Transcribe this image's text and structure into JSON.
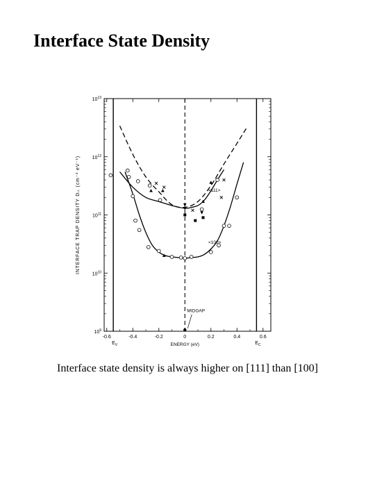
{
  "title": "Interface State Density",
  "caption": "Interface state density is always higher on [111] than [100]",
  "chart_data": {
    "type": "line",
    "xlabel": "ENERGY (eV)",
    "ylabel": "INTERFACE TRAP DENSITY Dᵢₜ (cm⁻² eV⁻¹)",
    "xlim": [
      -0.62,
      0.66
    ],
    "ylim_log10": [
      9,
      13
    ],
    "log_y": true,
    "x_ticks": [
      {
        "value": -0.6,
        "label": "-0.6"
      },
      {
        "value": -0.4,
        "label": "-0.4"
      },
      {
        "value": -0.2,
        "label": "-0.2"
      },
      {
        "value": 0,
        "label": "0"
      },
      {
        "value": 0.2,
        "label": "0.2"
      },
      {
        "value": 0.4,
        "label": "0.4"
      },
      {
        "value": 0.6,
        "label": "0.6"
      }
    ],
    "y_ticks": [
      {
        "log": 13,
        "mantissa": "10",
        "exp": "13"
      },
      {
        "log": 12,
        "mantissa": "10",
        "exp": "12"
      },
      {
        "log": 11,
        "mantissa": "10",
        "exp": "11"
      },
      {
        "log": 10,
        "mantissa": "10",
        "exp": "10"
      },
      {
        "log": 9,
        "mantissa": "10",
        "exp": "9"
      }
    ],
    "band_edges": [
      {
        "x": -0.55,
        "label": "E",
        "sub": "V"
      },
      {
        "x": 0.55,
        "label": "E",
        "sub": "C"
      }
    ],
    "midgap": {
      "x": 0,
      "label": "MIDGAP"
    },
    "series": [
      {
        "name": "<111>",
        "style": "dashed",
        "x": [
          -0.5,
          -0.4,
          -0.3,
          -0.2,
          -0.1,
          0,
          0.1,
          0.2,
          0.3,
          0.4,
          0.48
        ],
        "y": [
          3400000000000.0,
          1100000000000.0,
          450000000000.0,
          250000000000.0,
          150000000000.0,
          135000000000.0,
          170000000000.0,
          320000000000.0,
          750000000000.0,
          1700000000000.0,
          3300000000000.0
        ]
      },
      {
        "name": "<111>",
        "style": "solid",
        "x": [
          -0.5,
          -0.4,
          -0.3,
          -0.2,
          -0.1,
          0,
          0.05,
          0.1,
          0.15,
          0.2,
          0.25,
          0.3
        ],
        "y": [
          550000000000.0,
          300000000000.0,
          200000000000.0,
          170000000000.0,
          145000000000.0,
          130000000000.0,
          135000000000.0,
          145000000000.0,
          180000000000.0,
          260000000000.0,
          400000000000.0,
          600000000000.0
        ]
      },
      {
        "name": "<100>",
        "style": "solid",
        "x": [
          -0.46,
          -0.4,
          -0.35,
          -0.3,
          -0.25,
          -0.2,
          -0.15,
          -0.1,
          -0.05,
          0,
          0.05,
          0.1,
          0.15,
          0.2,
          0.25,
          0.3,
          0.35,
          0.4,
          0.45
        ],
        "y": [
          550000000000.0,
          230000000000.0,
          100000000000.0,
          50000000000.0,
          30000000000.0,
          23000000000.0,
          20000000000.0,
          19000000000.0,
          18500000000.0,
          18000000000.0,
          18500000000.0,
          19000000000.0,
          21000000000.0,
          26000000000.0,
          36000000000.0,
          65000000000.0,
          140000000000.0,
          340000000000.0,
          800000000000.0
        ]
      }
    ],
    "markers": {
      "circles": [
        [
          -0.57,
          480000000000.0
        ],
        [
          -0.44,
          580000000000.0
        ],
        [
          -0.43,
          450000000000.0
        ],
        [
          -0.36,
          380000000000.0
        ],
        [
          -0.27,
          320000000000.0
        ],
        [
          -0.4,
          210000000000.0
        ],
        [
          -0.38,
          80000000000.0
        ],
        [
          -0.35,
          55000000000.0
        ],
        [
          -0.28,
          28000000000.0
        ],
        [
          -0.2,
          24000000000.0
        ],
        [
          -0.1,
          19000000000.0
        ],
        [
          -0.03,
          18500000000.0
        ],
        [
          0.0,
          18000000000.0
        ],
        [
          0.05,
          19000000000.0
        ],
        [
          0.2,
          23000000000.0
        ],
        [
          0.26,
          30000000000.0
        ],
        [
          0.3,
          65000000000.0
        ],
        [
          0.34,
          65000000000.0
        ],
        [
          0.4,
          200000000000.0
        ],
        [
          0.25,
          400000000000.0
        ],
        [
          0.13,
          125000000000.0
        ],
        [
          -0.19,
          180000000000.0
        ]
      ],
      "crosses": [
        [
          -0.22,
          350000000000.0
        ],
        [
          -0.16,
          300000000000.0
        ],
        [
          0.3,
          400000000000.0
        ],
        [
          0.28,
          200000000000.0
        ],
        [
          0.06,
          120000000000.0
        ]
      ],
      "triangles": [
        [
          -0.26,
          260000000000.0
        ],
        [
          -0.17,
          260000000000.0
        ],
        [
          0.2,
          360000000000.0
        ],
        [
          -0.16,
          20000000000.0
        ],
        [
          0.14,
          170000000000.0
        ]
      ],
      "filled_squares": [
        [
          0,
          100000000000.0
        ],
        [
          0.08,
          80000000000.0
        ],
        [
          0.14,
          90000000000.0
        ]
      ],
      "filled_triangles": [
        [
          0,
          130000000000.0
        ],
        [
          0.13,
          110000000000.0
        ],
        [
          0.0,
          150000000000.0
        ]
      ],
      "filled_circles": [
        [
          0.0,
          1000000000.0
        ]
      ]
    },
    "annotations": [
      {
        "text": "<111>",
        "x": 0.18,
        "y": 250000000000.0
      },
      {
        "text": "<100>",
        "x": 0.18,
        "y": 32000000000.0
      }
    ],
    "grid": false,
    "legend": "none"
  }
}
